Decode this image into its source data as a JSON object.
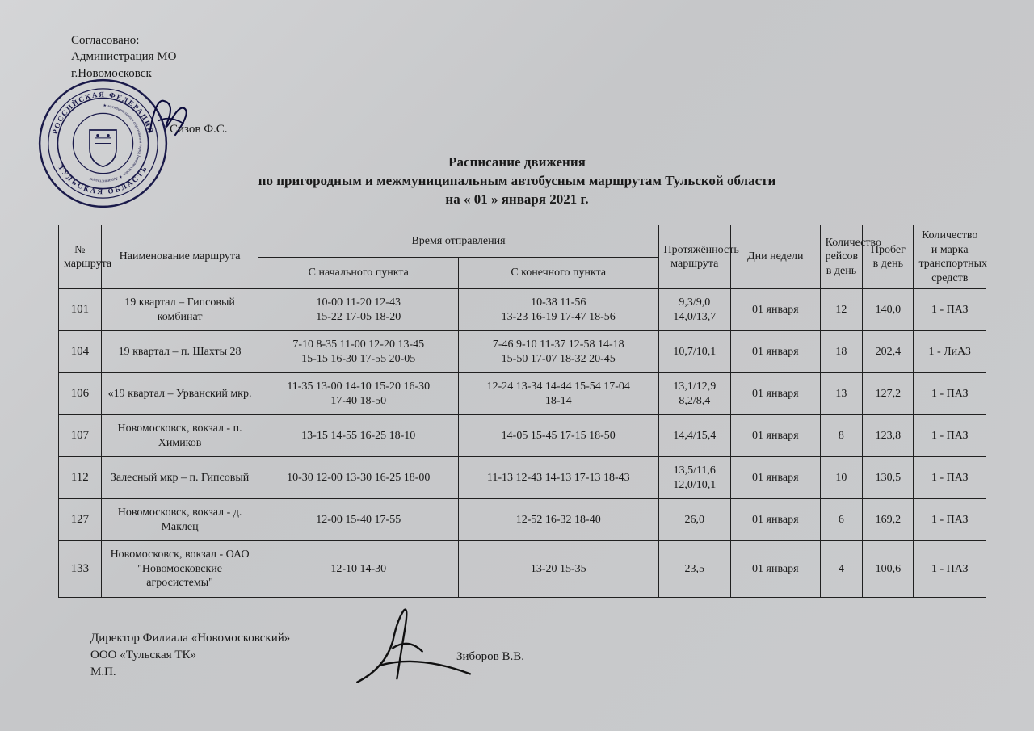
{
  "approval": {
    "line1": "Согласовано:",
    "line2": "Администрация МО",
    "line3": "г.Новомосковск",
    "approver": "Сизов Ф.С."
  },
  "stamp": {
    "outer_text_top": "РОССИЙСКАЯ ФЕДЕРАЦИЯ",
    "outer_text_bottom": "ТУЛЬСКАЯ ОБЛАСТЬ",
    "inner_text": "муниципального образования город Новомосковск Администрация",
    "color": "#1a1a4a"
  },
  "title": {
    "line1": "Расписание движения",
    "line2": "по пригородным и межмуниципальным автобусным маршрутам Тульской области",
    "line3": "на « 01 » января 2021 г."
  },
  "table": {
    "header": {
      "num": "№ маршрута",
      "name": "Наименование маршрута",
      "time_group": "Время отправления",
      "time_start": "С начального пункта",
      "time_end": "С конечного пункта",
      "distance": "Протяжённость маршрута",
      "days": "Дни недели",
      "trips": "Количество рейсов в день",
      "km": "Пробег в день",
      "vehicle": "Количество и марка транспортных средств"
    },
    "rows": [
      {
        "num": "101",
        "name": "19 квартал – Гипсовый комбинат",
        "t1": "10-00 11-20 12-43\n15-22 17-05 18-20",
        "t2": "10-38 11-56\n13-23 16-19 17-47 18-56",
        "dist": "9,3/9,0\n14,0/13,7",
        "days": "01 января",
        "trips": "12",
        "km": "140,0",
        "veh": "1 - ПАЗ"
      },
      {
        "num": "104",
        "name": "19 квартал – п. Шахты 28",
        "t1": "7-10 8-35 11-00 12-20 13-45\n15-15 16-30 17-55 20-05",
        "t2": "7-46 9-10 11-37 12-58 14-18\n15-50 17-07 18-32 20-45",
        "dist": "10,7/10,1",
        "days": "01 января",
        "trips": "18",
        "km": "202,4",
        "veh": "1 - ЛиАЗ"
      },
      {
        "num": "106",
        "name": "«19 квартал – Урванский мкр.",
        "t1": "11-35 13-00 14-10 15-20 16-30\n17-40 18-50",
        "t2": "12-24 13-34 14-44 15-54 17-04\n18-14",
        "dist": "13,1/12,9\n8,2/8,4",
        "days": "01 января",
        "trips": "13",
        "km": "127,2",
        "veh": "1 - ПАЗ"
      },
      {
        "num": "107",
        "name": "Новомосковск, вокзал - п. Химиков",
        "t1": "13-15 14-55 16-25 18-10",
        "t2": "14-05 15-45 17-15 18-50",
        "dist": "14,4/15,4",
        "days": "01 января",
        "trips": "8",
        "km": "123,8",
        "veh": "1 - ПАЗ"
      },
      {
        "num": "112",
        "name": "Залесный мкр – п. Гипсовый",
        "t1": "10-30 12-00 13-30 16-25 18-00",
        "t2": "11-13 12-43 14-13 17-13 18-43",
        "dist": "13,5/11,6\n12,0/10,1",
        "days": "01 января",
        "trips": "10",
        "km": "130,5",
        "veh": "1 - ПАЗ"
      },
      {
        "num": "127",
        "name": "Новомосковск, вокзал - д. Маклец",
        "t1": "12-00 15-40 17-55",
        "t2": "12-52 16-32 18-40",
        "dist": "26,0",
        "days": "01 января",
        "trips": "6",
        "km": "169,2",
        "veh": "1 - ПАЗ"
      },
      {
        "num": "133",
        "name": "Новомосковск, вокзал - ОАО \"Новомосковские агросистемы\"",
        "t1": "12-10 14-30",
        "t2": "13-20 15-35",
        "dist": "23,5",
        "days": "01 января",
        "trips": "4",
        "km": "100,6",
        "veh": "1 - ПАЗ"
      }
    ]
  },
  "footer": {
    "line1": "Директор Филиала  «Новомосковский»",
    "line2": "ООО «Тульская ТК»",
    "line3": "М.П.",
    "signer": "Зиборов В.В."
  },
  "colors": {
    "text": "#1a1a1a",
    "border": "#202020",
    "background": "#c8c9cb"
  }
}
